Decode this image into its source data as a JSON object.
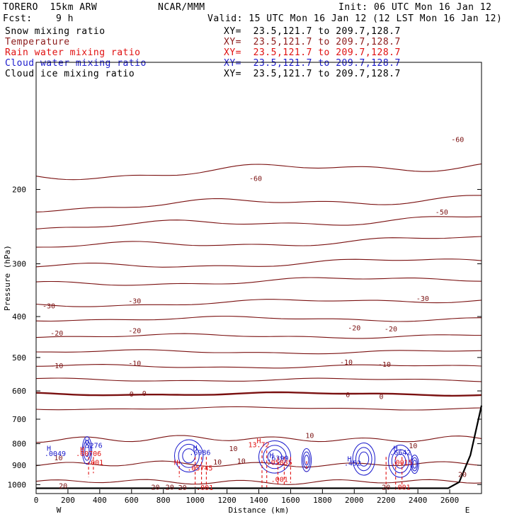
{
  "header": {
    "model": "TORERO  15km ARW",
    "center": "NCAR/MMM",
    "init": "Init: 06 UTC Mon 16 Jan 12",
    "fcst": "Fcst:    9 h",
    "valid": "Valid: 15 UTC Mon 16 Jan 12 (12 LST Mon 16 Jan 12)"
  },
  "legend": [
    {
      "label": "Snow mixing ratio",
      "xy": "XY=  23.5,121.7 to 209.7,128.7",
      "color": "#000000"
    },
    {
      "label": "Temperature",
      "xy": "XY=  23.5,121.7 to 209.7,128.7",
      "color": "#8b1a1a"
    },
    {
      "label": "Rain water mixing ratio",
      "xy": "XY=  23.5,121.7 to 209.7,128.7",
      "color": "#e01010"
    },
    {
      "label": "Cloud water mixing ratio",
      "xy": "XY=  23.5,121.7 to 209.7,128.7",
      "color": "#1a1acc"
    },
    {
      "label": "Cloud ice mixing ratio",
      "xy": "XY=  23.5,121.7 to 209.7,128.7",
      "color": "#000000"
    }
  ],
  "chart_data": {
    "type": "contour-cross-section",
    "xlabel": "Distance (km)",
    "ylabel": "Pressure (hPa)",
    "xlim": [
      0,
      2800
    ],
    "ylim": [
      1050,
      100
    ],
    "x_ticks": [
      "0",
      "200",
      "400",
      "600",
      "800",
      "1000",
      "1200",
      "1400",
      "1600",
      "1800",
      "2000",
      "2200",
      "2400",
      "2600"
    ],
    "y_ticks": [
      "200",
      "300",
      "400",
      "500",
      "600",
      "700",
      "800",
      "900",
      "1000"
    ],
    "west_label": "W",
    "east_label": "E",
    "temperature_levels": [
      -60,
      -55,
      -50,
      -45,
      -40,
      -35,
      -30,
      -25,
      -20,
      -15,
      -10,
      -5,
      0,
      5,
      10,
      15,
      20
    ],
    "temperature_isotherm_pressures_hPa": {
      "-60": 180,
      "-55": 215,
      "-50": 240,
      "-45": 268,
      "-40": 300,
      "-35": 330,
      "-30": 370,
      "-25": 405,
      "-20": 445,
      "-15": 485,
      "-10": 525,
      "-5": 565,
      "0": 610,
      "5": 660,
      "10": 780,
      "15": 895,
      "20": 985
    },
    "temperature_labels": [
      {
        "text": "-60",
        "x": 1380,
        "p": 188
      },
      {
        "text": "-60",
        "x": 2650,
        "p": 152
      },
      {
        "text": "-50",
        "x": 2550,
        "p": 226
      },
      {
        "text": "-30",
        "x": 80,
        "p": 377
      },
      {
        "text": "-30",
        "x": 620,
        "p": 367
      },
      {
        "text": "-30",
        "x": 2430,
        "p": 362
      },
      {
        "text": "-20",
        "x": 130,
        "p": 437
      },
      {
        "text": "-20",
        "x": 620,
        "p": 431
      },
      {
        "text": "-20",
        "x": 2000,
        "p": 425
      },
      {
        "text": "-20",
        "x": 2230,
        "p": 427
      },
      {
        "text": "-10",
        "x": 130,
        "p": 522
      },
      {
        "text": "-10",
        "x": 620,
        "p": 515
      },
      {
        "text": "-10",
        "x": 1950,
        "p": 512
      },
      {
        "text": "-10",
        "x": 2190,
        "p": 518
      },
      {
        "text": "0",
        "x": 600,
        "p": 609
      },
      {
        "text": "0",
        "x": 680,
        "p": 607
      },
      {
        "text": "0",
        "x": 1960,
        "p": 612
      },
      {
        "text": "0",
        "x": 2170,
        "p": 617
      },
      {
        "text": "10",
        "x": 1720,
        "p": 764
      },
      {
        "text": "10",
        "x": 1240,
        "p": 820
      },
      {
        "text": "10",
        "x": 2370,
        "p": 807
      },
      {
        "text": "10",
        "x": 140,
        "p": 862
      },
      {
        "text": "10",
        "x": 1140,
        "p": 882
      },
      {
        "text": "10",
        "x": 1290,
        "p": 877
      },
      {
        "text": "20",
        "x": 170,
        "p": 1004
      },
      {
        "text": "20",
        "x": 750,
        "p": 1012
      },
      {
        "text": "20",
        "x": 840,
        "p": 1012
      },
      {
        "text": "20",
        "x": 920,
        "p": 1014
      },
      {
        "text": "20",
        "x": 2200,
        "p": 1012
      },
      {
        "text": "20",
        "x": 2680,
        "p": 944
      }
    ],
    "extrema": [
      {
        "text": "H",
        "x": 80,
        "p": 818,
        "color": "#1a1acc"
      },
      {
        "text": ".0049",
        "x": 120,
        "p": 843,
        "color": "#1a1acc"
      },
      {
        "text": "H",
        "x": 320,
        "p": 788,
        "color": "#1a1acc"
      },
      {
        "text": ".5276",
        "x": 350,
        "p": 806,
        "color": "#1a1acc"
      },
      {
        "text": "H",
        "x": 290,
        "p": 823,
        "color": "#e01010"
      },
      {
        "text": ".00706",
        "x": 330,
        "p": 843,
        "color": "#e01010"
      },
      {
        "text": ".001",
        "x": 370,
        "p": 884,
        "color": "#e01010"
      },
      {
        "text": "H",
        "x": 1000,
        "p": 817,
        "color": "#1a1acc"
      },
      {
        "text": ".6986",
        "x": 1030,
        "p": 837,
        "color": "#1a1acc"
      },
      {
        "text": "H",
        "x": 880,
        "p": 884,
        "color": "#e01010"
      },
      {
        "text": ".05745",
        "x": 1030,
        "p": 912,
        "color": "#e01010"
      },
      {
        "text": ".001",
        "x": 1060,
        "p": 1014,
        "color": "#e01010"
      },
      {
        "text": "H",
        "x": 1400,
        "p": 786,
        "color": "#e01010"
      },
      {
        "text": "13.72",
        "x": 1400,
        "p": 803,
        "color": "#e01010"
      },
      {
        "text": "H",
        "x": 1480,
        "p": 850,
        "color": "#1a1acc"
      },
      {
        "text": ".6399",
        "x": 1520,
        "p": 864,
        "color": "#1a1acc"
      },
      {
        "text": ".05835",
        "x": 1530,
        "p": 885,
        "color": "#e01010"
      },
      {
        "text": ".001",
        "x": 1530,
        "p": 971,
        "color": "#e01010"
      },
      {
        "text": "H",
        "x": 1970,
        "p": 868,
        "color": "#1a1acc"
      },
      {
        "text": ".452",
        "x": 1990,
        "p": 888,
        "color": "#1a1acc"
      },
      {
        "text": "H",
        "x": 2260,
        "p": 818,
        "color": "#1a1acc"
      },
      {
        "text": ".6642",
        "x": 2290,
        "p": 837,
        "color": "#1a1acc"
      },
      {
        "text": ".0015",
        "x": 2300,
        "p": 885,
        "color": "#e01010"
      },
      {
        "text": ".001",
        "x": 2300,
        "p": 1012,
        "color": "#e01010"
      }
    ],
    "cloud_water_cells": [
      {
        "x": 320,
        "p": 830,
        "w": 60,
        "h": 60
      },
      {
        "x": 960,
        "p": 855,
        "w": 180,
        "h": 70
      },
      {
        "x": 1500,
        "p": 860,
        "w": 200,
        "h": 70
      },
      {
        "x": 1700,
        "p": 875,
        "w": 60,
        "h": 50
      },
      {
        "x": 2060,
        "p": 870,
        "w": 140,
        "h": 70
      },
      {
        "x": 2290,
        "p": 880,
        "w": 150,
        "h": 70
      },
      {
        "x": 2380,
        "p": 895,
        "w": 50,
        "h": 40
      }
    ],
    "rain_columns": [
      {
        "x": 330,
        "p_top": 860,
        "p_bot": 960
      },
      {
        "x": 360,
        "p_top": 860,
        "p_bot": 940
      },
      {
        "x": 900,
        "p_top": 880,
        "p_bot": 960
      },
      {
        "x": 1000,
        "p_top": 860,
        "p_bot": 1015
      },
      {
        "x": 1040,
        "p_top": 860,
        "p_bot": 1015
      },
      {
        "x": 1070,
        "p_top": 860,
        "p_bot": 1015
      },
      {
        "x": 1420,
        "p_top": 830,
        "p_bot": 1015
      },
      {
        "x": 1450,
        "p_top": 830,
        "p_bot": 1015
      },
      {
        "x": 1520,
        "p_top": 860,
        "p_bot": 1000
      },
      {
        "x": 1560,
        "p_top": 860,
        "p_bot": 1000
      },
      {
        "x": 1600,
        "p_top": 860,
        "p_bot": 990
      },
      {
        "x": 1700,
        "p_top": 880,
        "p_bot": 930
      },
      {
        "x": 2200,
        "p_top": 860,
        "p_bot": 1015
      },
      {
        "x": 2260,
        "p_top": 860,
        "p_bot": 1015
      },
      {
        "x": 2300,
        "p_top": 860,
        "p_bot": 1000
      }
    ]
  }
}
